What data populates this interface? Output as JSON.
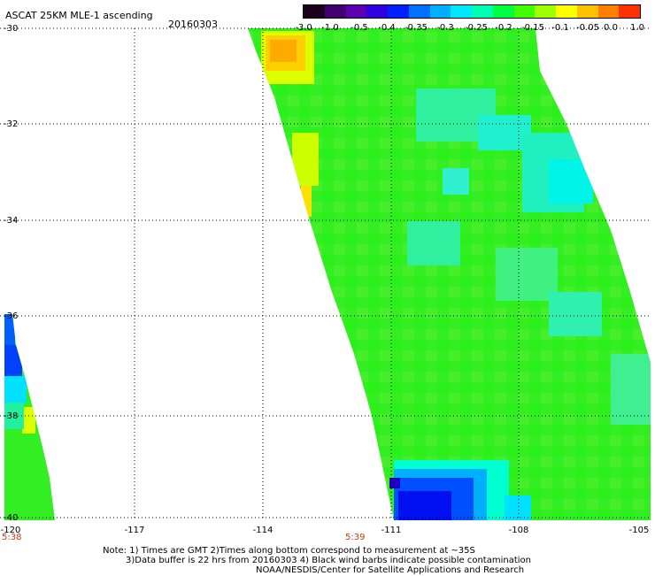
{
  "header": {
    "title": "ASCAT 25KM MLE-1 ascending",
    "date": "20160303"
  },
  "colorbar": {
    "labels": [
      "-3.0",
      "-1.0",
      "-0.5",
      "-0.4",
      "-0.35",
      "-0.3",
      "-0.25",
      "-0.2",
      "-0.15",
      "-0.1",
      "-0.05",
      "0.0",
      "1.0"
    ],
    "colors": [
      "#1a001a",
      "#400070",
      "#5a00b0",
      "#3000e0",
      "#0020ff",
      "#0070ff",
      "#00b0ff",
      "#00e8ff",
      "#00ffb0",
      "#00ff40",
      "#40ff00",
      "#a0ff00",
      "#ffff00",
      "#ffc000",
      "#ff8000",
      "#ff3000"
    ]
  },
  "map": {
    "lat_labels": [
      "-30",
      "-32",
      "-34",
      "-36",
      "-38",
      "-40"
    ],
    "lon_labels": [
      "-120",
      "-117",
      "-114",
      "-111",
      "-108",
      "-105"
    ],
    "times": [
      "5:38",
      "5:39"
    ]
  },
  "notes": {
    "line1": "Note: 1) Times are GMT 2)Times along bottom correspond to measurement at ~35S",
    "line2": "3)Data buffer is 22 hrs from 20160303 4) Black wind barbs indicate possible contamination",
    "line3": "NOAA/NESDIS/Center for Satellite Applications and Research"
  }
}
